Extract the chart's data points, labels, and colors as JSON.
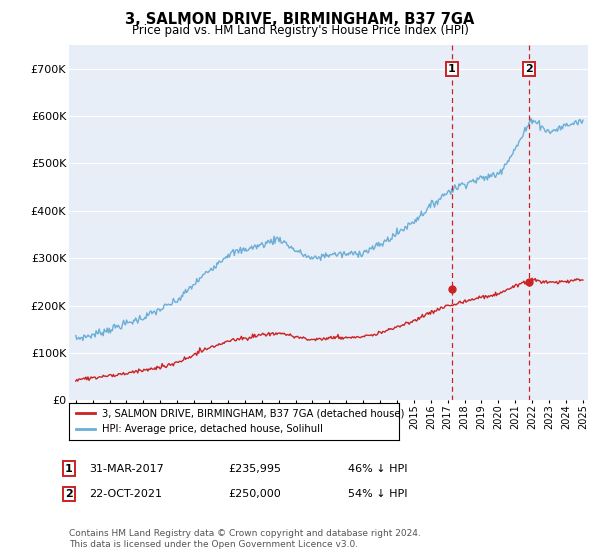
{
  "title": "3, SALMON DRIVE, BIRMINGHAM, B37 7GA",
  "subtitle": "Price paid vs. HM Land Registry's House Price Index (HPI)",
  "hpi_label": "HPI: Average price, detached house, Solihull",
  "price_label": "3, SALMON DRIVE, BIRMINGHAM, B37 7GA (detached house)",
  "hpi_color": "#6baed6",
  "price_color": "#cc2222",
  "annotation_box_color": "#cc2222",
  "ylim": [
    0,
    750000
  ],
  "yticks": [
    0,
    100000,
    200000,
    300000,
    400000,
    500000,
    600000,
    700000
  ],
  "ytick_labels": [
    "£0",
    "£100K",
    "£200K",
    "£300K",
    "£400K",
    "£500K",
    "£600K",
    "£700K"
  ],
  "footnote": "Contains HM Land Registry data © Crown copyright and database right 2024.\nThis data is licensed under the Open Government Licence v3.0.",
  "transaction1": {
    "label": "1",
    "date": "31-MAR-2017",
    "price": "235,995",
    "pct": "46% ↓ HPI"
  },
  "transaction2": {
    "label": "2",
    "date": "22-OCT-2021",
    "price": "250,000",
    "pct": "54% ↓ HPI"
  },
  "vline1_x": 2017.25,
  "vline2_x": 2021.8,
  "p1_y": 235995,
  "p2_y": 250000,
  "background_color": "#e8eef8",
  "xlim_left": 1994.6,
  "xlim_right": 2025.3
}
